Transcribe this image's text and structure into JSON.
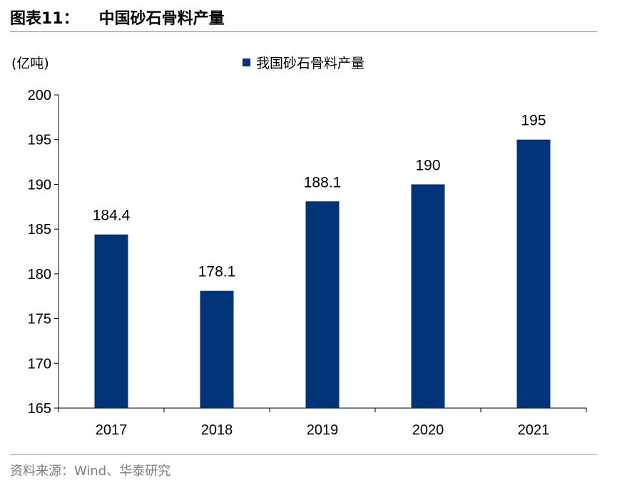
{
  "header": {
    "figure_number": "图表11：",
    "title": "中国砂石骨料产量"
  },
  "footer": {
    "source": "资料来源：Wind、华泰研究"
  },
  "colors": {
    "bar": "#003478",
    "rule": "#7a9cc6",
    "source_text": "#7f7f7f"
  },
  "chart_data": {
    "type": "bar",
    "title": "中国砂石骨料产量",
    "ylabel": "(亿吨)",
    "xlabel": "",
    "categories": [
      "2017",
      "2018",
      "2019",
      "2020",
      "2021"
    ],
    "series": [
      {
        "name": "我国砂石骨料产量",
        "values": [
          184.4,
          178.1,
          188.1,
          190,
          195
        ],
        "data_labels": [
          "184.4",
          "178.1",
          "188.1",
          "190",
          "195"
        ]
      }
    ],
    "ylim": [
      165,
      200
    ],
    "yticks": [
      165,
      170,
      175,
      180,
      185,
      190,
      195,
      200
    ],
    "legend_position": "top-center",
    "grid": false
  }
}
